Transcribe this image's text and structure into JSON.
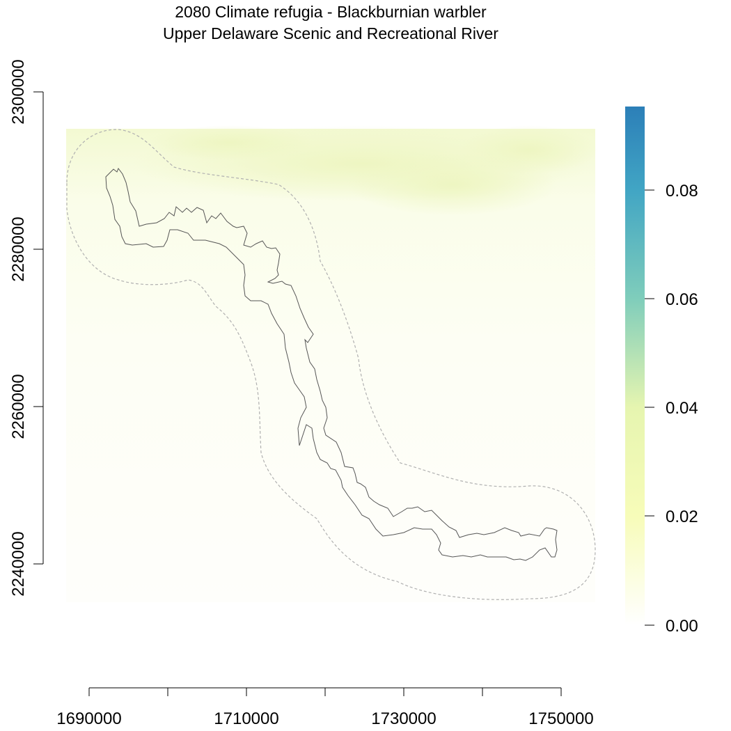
{
  "map": {
    "title": "2080 Climate refugia - Blackburnian warbler",
    "subtitle": "Upper Delaware Scenic and Recreational River",
    "x_axis": {
      "range": [
        1690000,
        1750000
      ],
      "ticks": [
        1690000,
        1700000,
        1710000,
        1720000,
        1730000,
        1740000,
        1750000
      ],
      "tick_labels": [
        "1690000",
        "",
        "1710000",
        "",
        "1730000",
        "",
        "1750000"
      ]
    },
    "y_axis": {
      "range": [
        2240000,
        2300000
      ],
      "ticks": [
        2240000,
        2260000,
        2280000,
        2300000
      ],
      "tick_labels": [
        "2240000",
        "2260000",
        "2280000",
        "2300000"
      ]
    },
    "legend": {
      "min": 0.0,
      "max": 0.095,
      "ticks": [
        0.0,
        0.02,
        0.04,
        0.06,
        0.08
      ],
      "tick_labels": [
        "0.00",
        "0.02",
        "0.04",
        "0.06",
        "0.08"
      ],
      "colors": [
        "#ffffe6",
        "#f7fcb9",
        "#c2e699",
        "#7bccc4",
        "#2c7fb8"
      ]
    },
    "layers": [
      "raster",
      "park-boundary",
      "buffer-boundary"
    ],
    "colors": {
      "boundary": "#555555",
      "buffer": "#b0b0b0",
      "raster_light": "#fcfde6",
      "raster_yellow": "#eef6c2"
    }
  }
}
